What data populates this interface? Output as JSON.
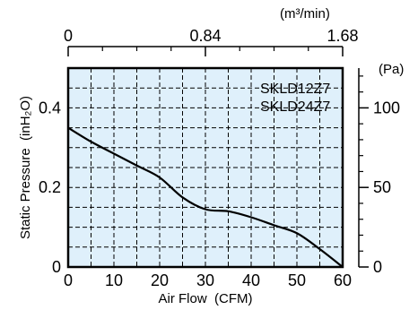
{
  "chart_data": {
    "type": "line",
    "series": [
      {
        "x": [
          0,
          5,
          10,
          15,
          20,
          25,
          30,
          35,
          40,
          45,
          50,
          55,
          60
        ],
        "values": [
          0.35,
          0.315,
          0.285,
          0.255,
          0.225,
          0.175,
          0.145,
          0.14,
          0.125,
          0.105,
          0.085,
          0.045,
          0.0
        ]
      }
    ],
    "legend_labels": [
      "SKLD12Z7",
      "SKLD24Z7"
    ],
    "legend_position": "top-right",
    "xlabel": "Air Flow  (CFM)",
    "ylabel": "Static Pressure  (inH₂O)",
    "top_axis_unit": "(m³/min)",
    "right_axis_unit": "(Pa)",
    "x_ticks": [
      "0",
      "10",
      "20",
      "30",
      "40",
      "50",
      "60"
    ],
    "y_ticks": [
      "0",
      "0.2",
      "0.4"
    ],
    "top_ticks": [
      "0",
      "0.84",
      "1.68"
    ],
    "right_ticks": [
      "0",
      "50",
      "100"
    ],
    "xlim": [
      0,
      60
    ],
    "ylim": [
      0,
      0.5
    ],
    "top_lim": [
      0,
      1.68
    ],
    "right_lim": [
      0,
      125
    ],
    "grid": true,
    "colors": {
      "plot_bg": "#dff0fb",
      "line": "#000000",
      "grid": "#000000",
      "frame": "#000000"
    }
  }
}
